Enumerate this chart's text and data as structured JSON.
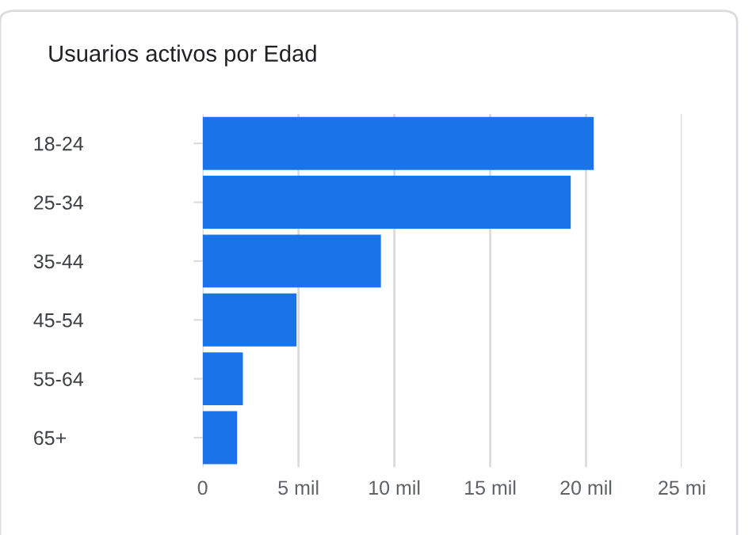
{
  "chart_data": {
    "type": "bar",
    "orientation": "horizontal",
    "title": "Usuarios activos por Edad",
    "categories": [
      "18-24",
      "25-34",
      "35-44",
      "45-54",
      "55-64",
      "65+"
    ],
    "values": [
      20.4,
      19.2,
      9.3,
      4.9,
      2.1,
      1.8
    ],
    "color": "#1a73e8",
    "xlim": [
      0,
      25
    ],
    "xticks": [
      0,
      {
        "value": 5,
        "label": "5 mil"
      },
      {
        "value": 10,
        "label": "10 mil"
      },
      {
        "value": 15,
        "label": "15 mil"
      },
      {
        "value": 20,
        "label": "20 mil"
      },
      {
        "value": 25,
        "label": "25 mi"
      }
    ],
    "grid": "x"
  }
}
